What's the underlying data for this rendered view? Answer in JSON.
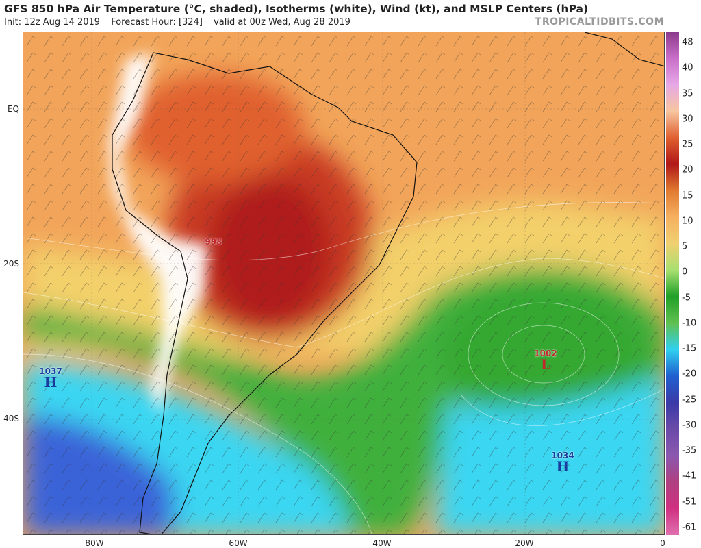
{
  "header": {
    "title": "GFS 850 hPa Air Temperature (°C, shaded), Isotherms (white), Wind (kt), and MSLP Centers (hPa)",
    "init": "Init: 12z Aug 14 2019",
    "forecast_hour": "Forecast Hour: [324]",
    "valid": "valid at 00z Wed, Aug 28 2019",
    "brand": "TROPICALTIDBITS.COM"
  },
  "map": {
    "lat_labels": [
      "EQ",
      "20S",
      "40S"
    ],
    "lon_labels": [
      "80W",
      "60W",
      "40W",
      "20W",
      "0"
    ],
    "pressure_centers": [
      {
        "id": "high-west",
        "type": "H",
        "value": "1037",
        "color": "#1a3c9c"
      },
      {
        "id": "low-south-america",
        "type": "",
        "value": "998",
        "color": "#c0282c"
      },
      {
        "id": "low-atlantic",
        "type": "L",
        "value": "1002",
        "color": "#c0282c"
      },
      {
        "id": "high-south-atlantic",
        "type": "H",
        "value": "1034",
        "color": "#1a3c9c"
      }
    ]
  },
  "colorbar": {
    "labels": [
      "48",
      "40",
      "35",
      "30",
      "25",
      "20",
      "15",
      "10",
      "5",
      "0",
      "-5",
      "-10",
      "-15",
      "-20",
      "-25",
      "-30",
      "-35",
      "-41",
      "-51",
      "-61"
    ],
    "colors": [
      "#8a3a8a",
      "#c96ec9",
      "#e6a8e6",
      "#f7c6a0",
      "#e06030",
      "#b01818",
      "#e07a30",
      "#f6b060",
      "#f0d070",
      "#a8e070",
      "#20a028",
      "#60c050",
      "#30d0f0",
      "#2060d0",
      "#3a3aa8",
      "#6a4aa8",
      "#8a58b0",
      "#b04080",
      "#d03080",
      "#e070b0"
    ]
  }
}
